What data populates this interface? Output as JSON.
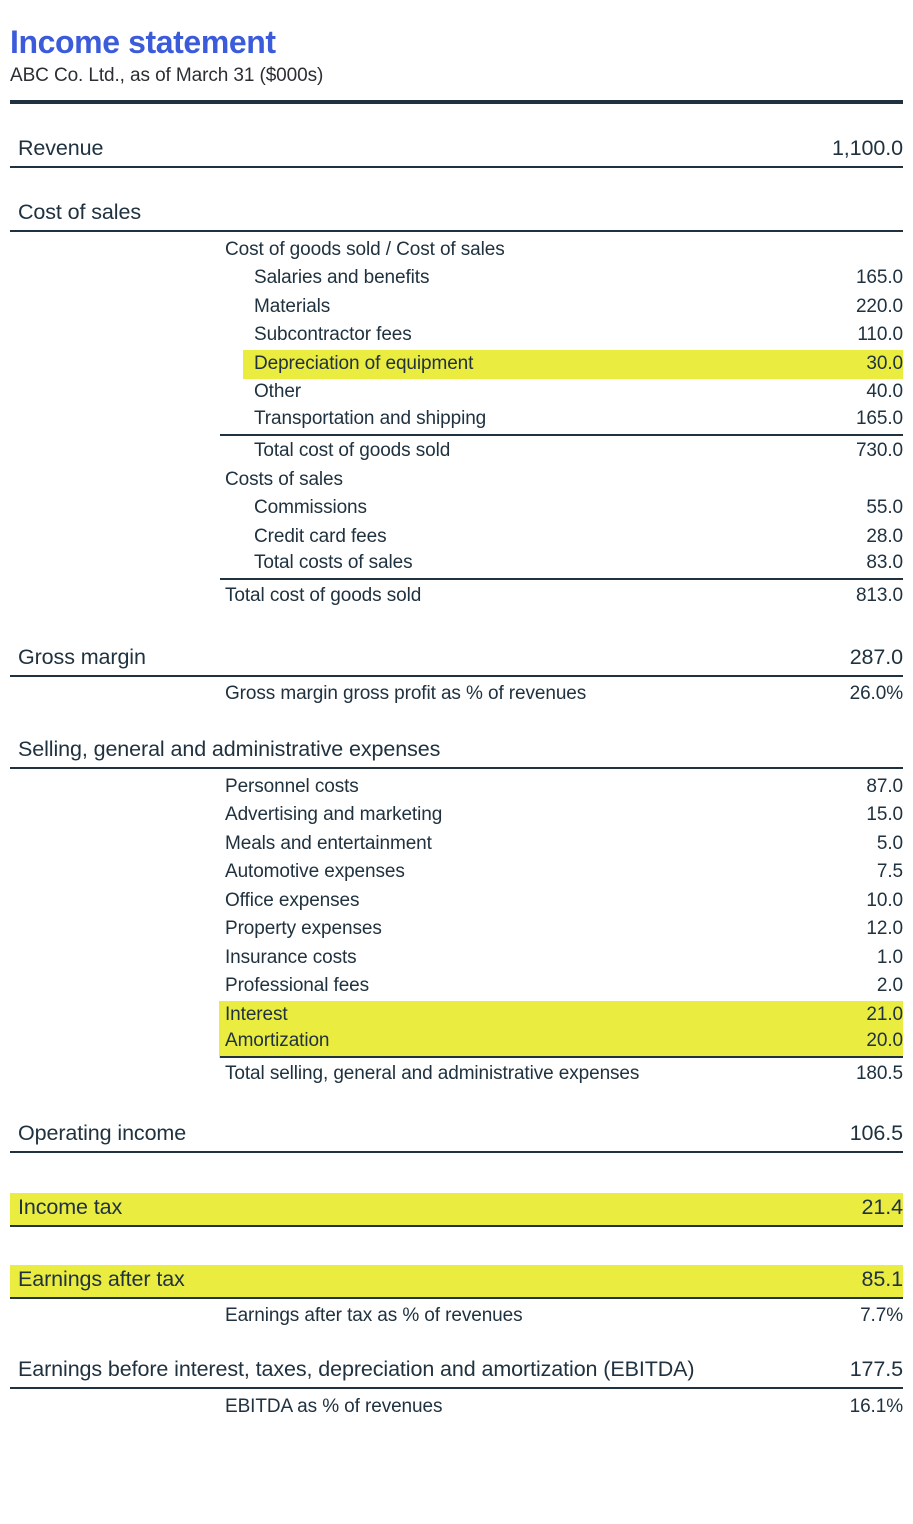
{
  "header": {
    "title": "Income statement",
    "subtitle": "ABC Co. Ltd., as of March 31 ($000s)"
  },
  "colors": {
    "text_ink": "#20323f",
    "title_blue": "#3b5bdb",
    "highlight_yellow": "#eaec40",
    "subtitle_gray": "#2b2f33",
    "paper_white": "#ffffff"
  },
  "statement": {
    "rows": [
      {
        "label": "Revenue",
        "value": "1,100.0",
        "indent": 0,
        "size": "lg",
        "gap_before": 30,
        "rule_after": "full"
      },
      {
        "label": "Cost of sales",
        "value": "",
        "indent": 0,
        "size": "lg",
        "gap_before": 30,
        "rule_after": "full"
      },
      {
        "label": "Cost of goods sold / Cost of sales",
        "value": "",
        "indent": 1,
        "size": "md",
        "gap_before": 4
      },
      {
        "label": "Salaries and benefits",
        "value": "165.0",
        "indent": 2,
        "size": "md"
      },
      {
        "label": "Materials",
        "value": "220.0",
        "indent": 2,
        "size": "md"
      },
      {
        "label": "Subcontractor fees",
        "value": "110.0",
        "indent": 2,
        "size": "md"
      },
      {
        "label": "Depreciation of equipment",
        "value": "30.0",
        "indent": 2,
        "size": "md",
        "highlight": "l2"
      },
      {
        "label": "Other",
        "value": "40.0",
        "indent": 2,
        "size": "md"
      },
      {
        "label": "Transportation and shipping",
        "value": "165.0",
        "indent": 2,
        "size": "md",
        "rule_after": "partial"
      },
      {
        "label": "Total cost of goods sold",
        "value": "730.0",
        "indent": 2,
        "size": "md",
        "gap_before": 2
      },
      {
        "label": "Costs of sales",
        "value": "",
        "indent": 1,
        "size": "md"
      },
      {
        "label": "Commissions",
        "value": "55.0",
        "indent": 2,
        "size": "md"
      },
      {
        "label": "Credit card fees",
        "value": "28.0",
        "indent": 2,
        "size": "md"
      },
      {
        "label": "Total costs of sales",
        "value": "83.0",
        "indent": 2,
        "size": "md",
        "rule_after": "partial"
      },
      {
        "label": "Total cost of goods sold",
        "value": "813.0",
        "indent": 1,
        "size": "md",
        "gap_before": 2
      },
      {
        "label": "Gross margin",
        "value": "287.0",
        "indent": 0,
        "size": "lg",
        "gap_before": 32,
        "rule_after": "full"
      },
      {
        "label": "Gross margin gross profit as % of revenues",
        "value": "26.0%",
        "indent": 1,
        "size": "md",
        "gap_before": 4
      },
      {
        "label": "Selling, general and administrative expenses",
        "value": "",
        "indent": 0,
        "size": "lg",
        "gap_before": 26,
        "rule_after": "full"
      },
      {
        "label": "Personnel costs",
        "value": "87.0",
        "indent": 1,
        "size": "md",
        "gap_before": 4
      },
      {
        "label": "Advertising and marketing",
        "value": "15.0",
        "indent": 1,
        "size": "md"
      },
      {
        "label": "Meals and entertainment",
        "value": "5.0",
        "indent": 1,
        "size": "md"
      },
      {
        "label": "Automotive expenses",
        "value": "7.5",
        "indent": 1,
        "size": "md"
      },
      {
        "label": "Office expenses",
        "value": "10.0",
        "indent": 1,
        "size": "md"
      },
      {
        "label": "Property expenses",
        "value": "12.0",
        "indent": 1,
        "size": "md"
      },
      {
        "label": "Insurance costs",
        "value": "1.0",
        "indent": 1,
        "size": "md"
      },
      {
        "label": "Professional fees",
        "value": "2.0",
        "indent": 1,
        "size": "md"
      },
      {
        "label": "Interest",
        "value": "21.0",
        "indent": 1,
        "size": "md",
        "highlight": "l1"
      },
      {
        "label": "Amortization",
        "value": "20.0",
        "indent": 1,
        "size": "md",
        "highlight": "l1",
        "rule_after": "partial"
      },
      {
        "label": "Total selling, general and administrative expenses",
        "value": "180.5",
        "indent": 1,
        "size": "md",
        "gap_before": 2
      },
      {
        "label": "Operating income",
        "value": "106.5",
        "indent": 0,
        "size": "lg",
        "gap_before": 30,
        "rule_after": "full"
      },
      {
        "label": "Income tax",
        "value": "21.4",
        "indent": 0,
        "size": "lg",
        "gap_before": 40,
        "highlight": "full",
        "rule_after": "full"
      },
      {
        "label": "Earnings after tax",
        "value": "85.1",
        "indent": 0,
        "size": "lg",
        "gap_before": 38,
        "highlight": "full",
        "rule_after": "full"
      },
      {
        "label": "Earnings after tax as % of revenues",
        "value": "7.7%",
        "indent": 1,
        "size": "md",
        "gap_before": 4
      },
      {
        "label": "Earnings before interest, taxes, depreciation and amortization (EBITDA)",
        "value": "177.5",
        "indent": 0,
        "size": "lg",
        "gap_before": 24,
        "rule_after": "full"
      },
      {
        "label": "EBITDA as % of revenues",
        "value": "16.1%",
        "indent": 1,
        "size": "md",
        "gap_before": 4
      }
    ]
  }
}
